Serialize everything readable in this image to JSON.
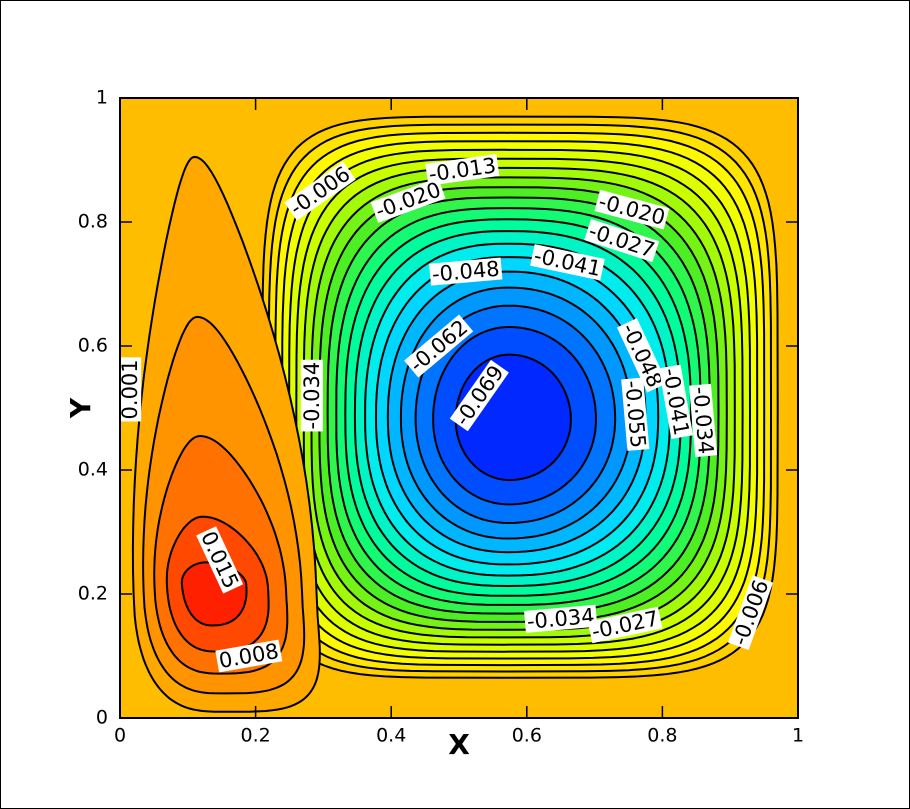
{
  "chart_data": {
    "type": "contour",
    "xlabel": "X",
    "ylabel": "Y",
    "xlim": [
      0,
      1
    ],
    "ylim": [
      0,
      1
    ],
    "xticks": [
      0,
      0.2,
      0.4,
      0.6,
      0.8,
      1
    ],
    "yticks": [
      0,
      0.2,
      0.4,
      0.6,
      0.8,
      1
    ],
    "levels": [
      0.015,
      0.0115,
      0.008,
      0.0045,
      0.001,
      -0.0025,
      -0.006,
      -0.0095,
      -0.013,
      -0.0165,
      -0.02,
      -0.0235,
      -0.027,
      -0.0305,
      -0.034,
      -0.0375,
      -0.041,
      -0.0445,
      -0.048,
      -0.0515,
      -0.055,
      -0.0585,
      -0.062,
      -0.0655,
      -0.069
    ],
    "colormap": [
      "#0028ff",
      "#0090ff",
      "#00e8ff",
      "#00ff90",
      "#50ee20",
      "#c8ff00",
      "#ffff00",
      "#ffc800",
      "#ff9000",
      "#ff2000"
    ],
    "line_color": "#000000",
    "contour_labels": [
      {
        "value": -0.006,
        "label": "-0.006",
        "x": 0.295,
        "y": 0.85
      },
      {
        "value": -0.013,
        "label": "-0.013",
        "x": 0.505,
        "y": 0.884
      },
      {
        "value": -0.02,
        "label": "-0.020",
        "x": 0.425,
        "y": 0.835
      },
      {
        "value": -0.02,
        "label": "-0.020",
        "x": 0.755,
        "y": 0.82
      },
      {
        "value": -0.027,
        "label": "-0.027",
        "x": 0.74,
        "y": 0.77
      },
      {
        "value": -0.041,
        "label": "-0.041",
        "x": 0.66,
        "y": 0.735
      },
      {
        "value": -0.048,
        "label": "-0.048",
        "x": 0.51,
        "y": 0.72
      },
      {
        "value": -0.062,
        "label": "-0.062",
        "x": 0.47,
        "y": 0.6
      },
      {
        "value": -0.069,
        "label": "-0.069",
        "x": 0.53,
        "y": 0.52
      },
      {
        "value": -0.034,
        "label": "-0.034",
        "x": 0.283,
        "y": 0.52
      },
      {
        "value": -0.048,
        "label": "-0.048",
        "x": 0.77,
        "y": 0.585
      },
      {
        "value": -0.055,
        "label": "-0.055",
        "x": 0.76,
        "y": 0.49
      },
      {
        "value": -0.041,
        "label": "-0.041",
        "x": 0.82,
        "y": 0.51
      },
      {
        "value": -0.034,
        "label": "-0.034",
        "x": 0.86,
        "y": 0.48
      },
      {
        "value": -0.034,
        "label": "-0.034",
        "x": 0.65,
        "y": 0.16
      },
      {
        "value": -0.027,
        "label": "-0.027",
        "x": 0.745,
        "y": 0.15
      },
      {
        "value": -0.006,
        "label": "-0.006",
        "x": 0.93,
        "y": 0.17
      },
      {
        "value": 0.001,
        "label": "0.001",
        "x": 0.015,
        "y": 0.53
      },
      {
        "value": 0.015,
        "label": "0.015",
        "x": 0.147,
        "y": 0.255
      },
      {
        "value": 0.008,
        "label": "0.008",
        "x": 0.19,
        "y": 0.1
      }
    ]
  }
}
